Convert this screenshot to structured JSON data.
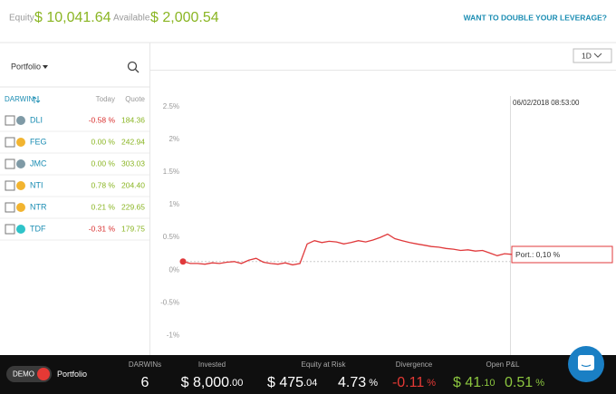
{
  "header": {
    "equity_label": "Equity",
    "equity_value": "$ 10,041.64",
    "available_label": "Available",
    "available_value": "$ 2,000.54",
    "promo_link": "WANT TO DOUBLE YOUR LEVERAGE?"
  },
  "sidebar": {
    "dropdown": "Portfolio",
    "columns": [
      "DARWIN",
      "Today",
      "Quote"
    ],
    "rows": [
      {
        "name": "DLI",
        "color": "#7f9aa6",
        "today": "-0.58 %",
        "quote": "184.36"
      },
      {
        "name": "FEG",
        "color": "#f2b430",
        "today": "0.00 %",
        "quote": "242.94"
      },
      {
        "name": "JMC",
        "color": "#7f9aa6",
        "today": "0.00 %",
        "quote": "303.03"
      },
      {
        "name": "NTI",
        "color": "#f2b430",
        "today": "0.78 %",
        "quote": "204.40"
      },
      {
        "name": "NTR",
        "color": "#f2b430",
        "today": "0.21 %",
        "quote": "229.65"
      },
      {
        "name": "TDF",
        "color": "#2fc3c9",
        "today": "-0.31 %",
        "quote": "179.75"
      }
    ]
  },
  "chart_data": {
    "type": "line",
    "period": "1D",
    "timestamp": "06/02/2018 08:53:00",
    "tooltip": "Port.: 0,10 %",
    "ylim": [
      -1.3,
      3.05
    ],
    "yticks": [
      {
        "value": 2.5,
        "label": "2.5%"
      },
      {
        "value": 2,
        "label": "2%"
      },
      {
        "value": 1.5,
        "label": "1.5%"
      },
      {
        "value": 1,
        "label": "1%"
      },
      {
        "value": 0.5,
        "label": "0.5%"
      },
      {
        "value": 0,
        "label": "0%"
      },
      {
        "value": -0.5,
        "label": "-0.5%"
      },
      {
        "value": -1,
        "label": "-1%"
      }
    ],
    "grid": false,
    "series": [
      {
        "color": "#e0393b",
        "values": [
          0.13,
          0.1,
          0.1,
          0.09,
          0.11,
          0.1,
          0.12,
          0.13,
          0.1,
          0.15,
          0.18,
          0.12,
          0.1,
          0.09,
          0.11,
          0.08,
          0.1,
          0.4,
          0.45,
          0.42,
          0.44,
          0.43,
          0.4,
          0.42,
          0.45,
          0.43,
          0.46,
          0.5,
          0.55,
          0.48,
          0.45,
          0.42,
          0.4,
          0.38,
          0.36,
          0.35,
          0.33,
          0.32,
          0.3,
          0.31,
          0.29,
          0.3,
          0.26,
          0.22,
          0.25,
          0.24
        ]
      }
    ]
  },
  "footer": {
    "mode": "DEMO",
    "account": "Portfolio",
    "stats": [
      {
        "label": "DARWINs",
        "values": [
          {
            "main": "6",
            "color": "#ffffff"
          }
        ]
      },
      {
        "label": "Invested",
        "values": [
          {
            "main": "$ 8,000",
            "cents": ".00",
            "color": "#ffffff"
          }
        ]
      },
      {
        "label": "Equity at Risk",
        "values": [
          {
            "main": "$ 475",
            "cents": ".04",
            "color": "#ffffff"
          },
          {
            "main": "4.73",
            "cents": " %",
            "color": "#ffffff"
          }
        ]
      },
      {
        "label": "Divergence",
        "values": [
          {
            "main": "-0.11",
            "cents": " %",
            "color": "#e53935"
          }
        ]
      },
      {
        "label": "Open P&L",
        "values": [
          {
            "main": "$ 41",
            "cents": ".10",
            "color": "#8cc63f"
          },
          {
            "main": "0.51",
            "cents": " %",
            "color": "#8cc63f"
          }
        ]
      }
    ]
  }
}
